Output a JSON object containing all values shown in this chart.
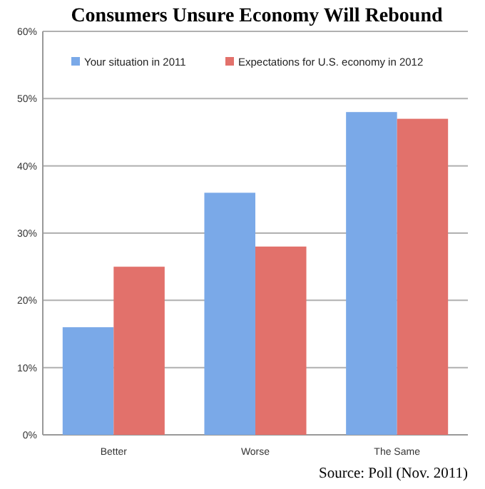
{
  "chart_data": {
    "type": "bar",
    "title": "Consumers Unsure Economy Will Rebound",
    "categories": [
      "Better",
      "Worse",
      "The Same"
    ],
    "series": [
      {
        "name": "Your situation in 2011",
        "color": "#7aa9e8",
        "values": [
          16,
          36,
          48
        ]
      },
      {
        "name": "Expectations for U.S. economy in 2012",
        "color": "#e2716b",
        "values": [
          25,
          28,
          47
        ]
      }
    ],
    "ylim": [
      0,
      60
    ],
    "yticks": [
      {
        "value": 0,
        "label": "0%"
      },
      {
        "value": 10,
        "label": "10%"
      },
      {
        "value": 20,
        "label": "20%"
      },
      {
        "value": 30,
        "label": "30%"
      },
      {
        "value": 40,
        "label": "40%"
      },
      {
        "value": 50,
        "label": "50%"
      },
      {
        "value": 60,
        "label": "60%"
      }
    ],
    "grid": "y",
    "legend": "top",
    "annotations": [
      "Source: Poll (Nov. 2011)"
    ]
  }
}
